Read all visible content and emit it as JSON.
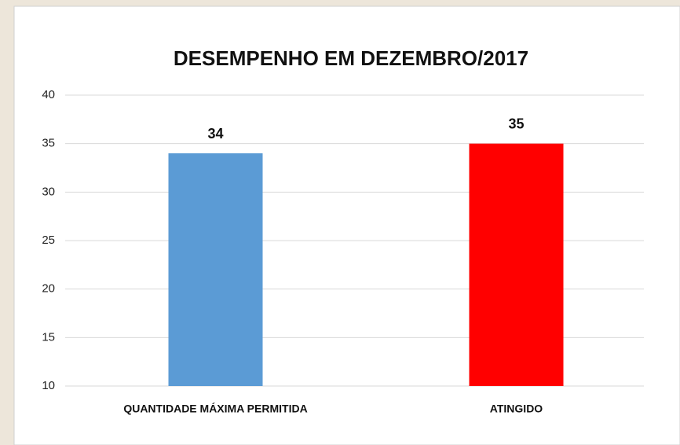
{
  "chart_data": {
    "type": "bar",
    "title": "DESEMPENHO EM DEZEMBRO/2017",
    "categories": [
      "QUANTIDADE MÁXIMA PERMITIDA",
      "ATINGIDO"
    ],
    "values": [
      34,
      35
    ],
    "colors": [
      "#5b9bd5",
      "#ff0000"
    ],
    "ylim": [
      10,
      40
    ],
    "yticks": [
      10,
      15,
      20,
      25,
      30,
      35,
      40
    ],
    "grid": true
  }
}
